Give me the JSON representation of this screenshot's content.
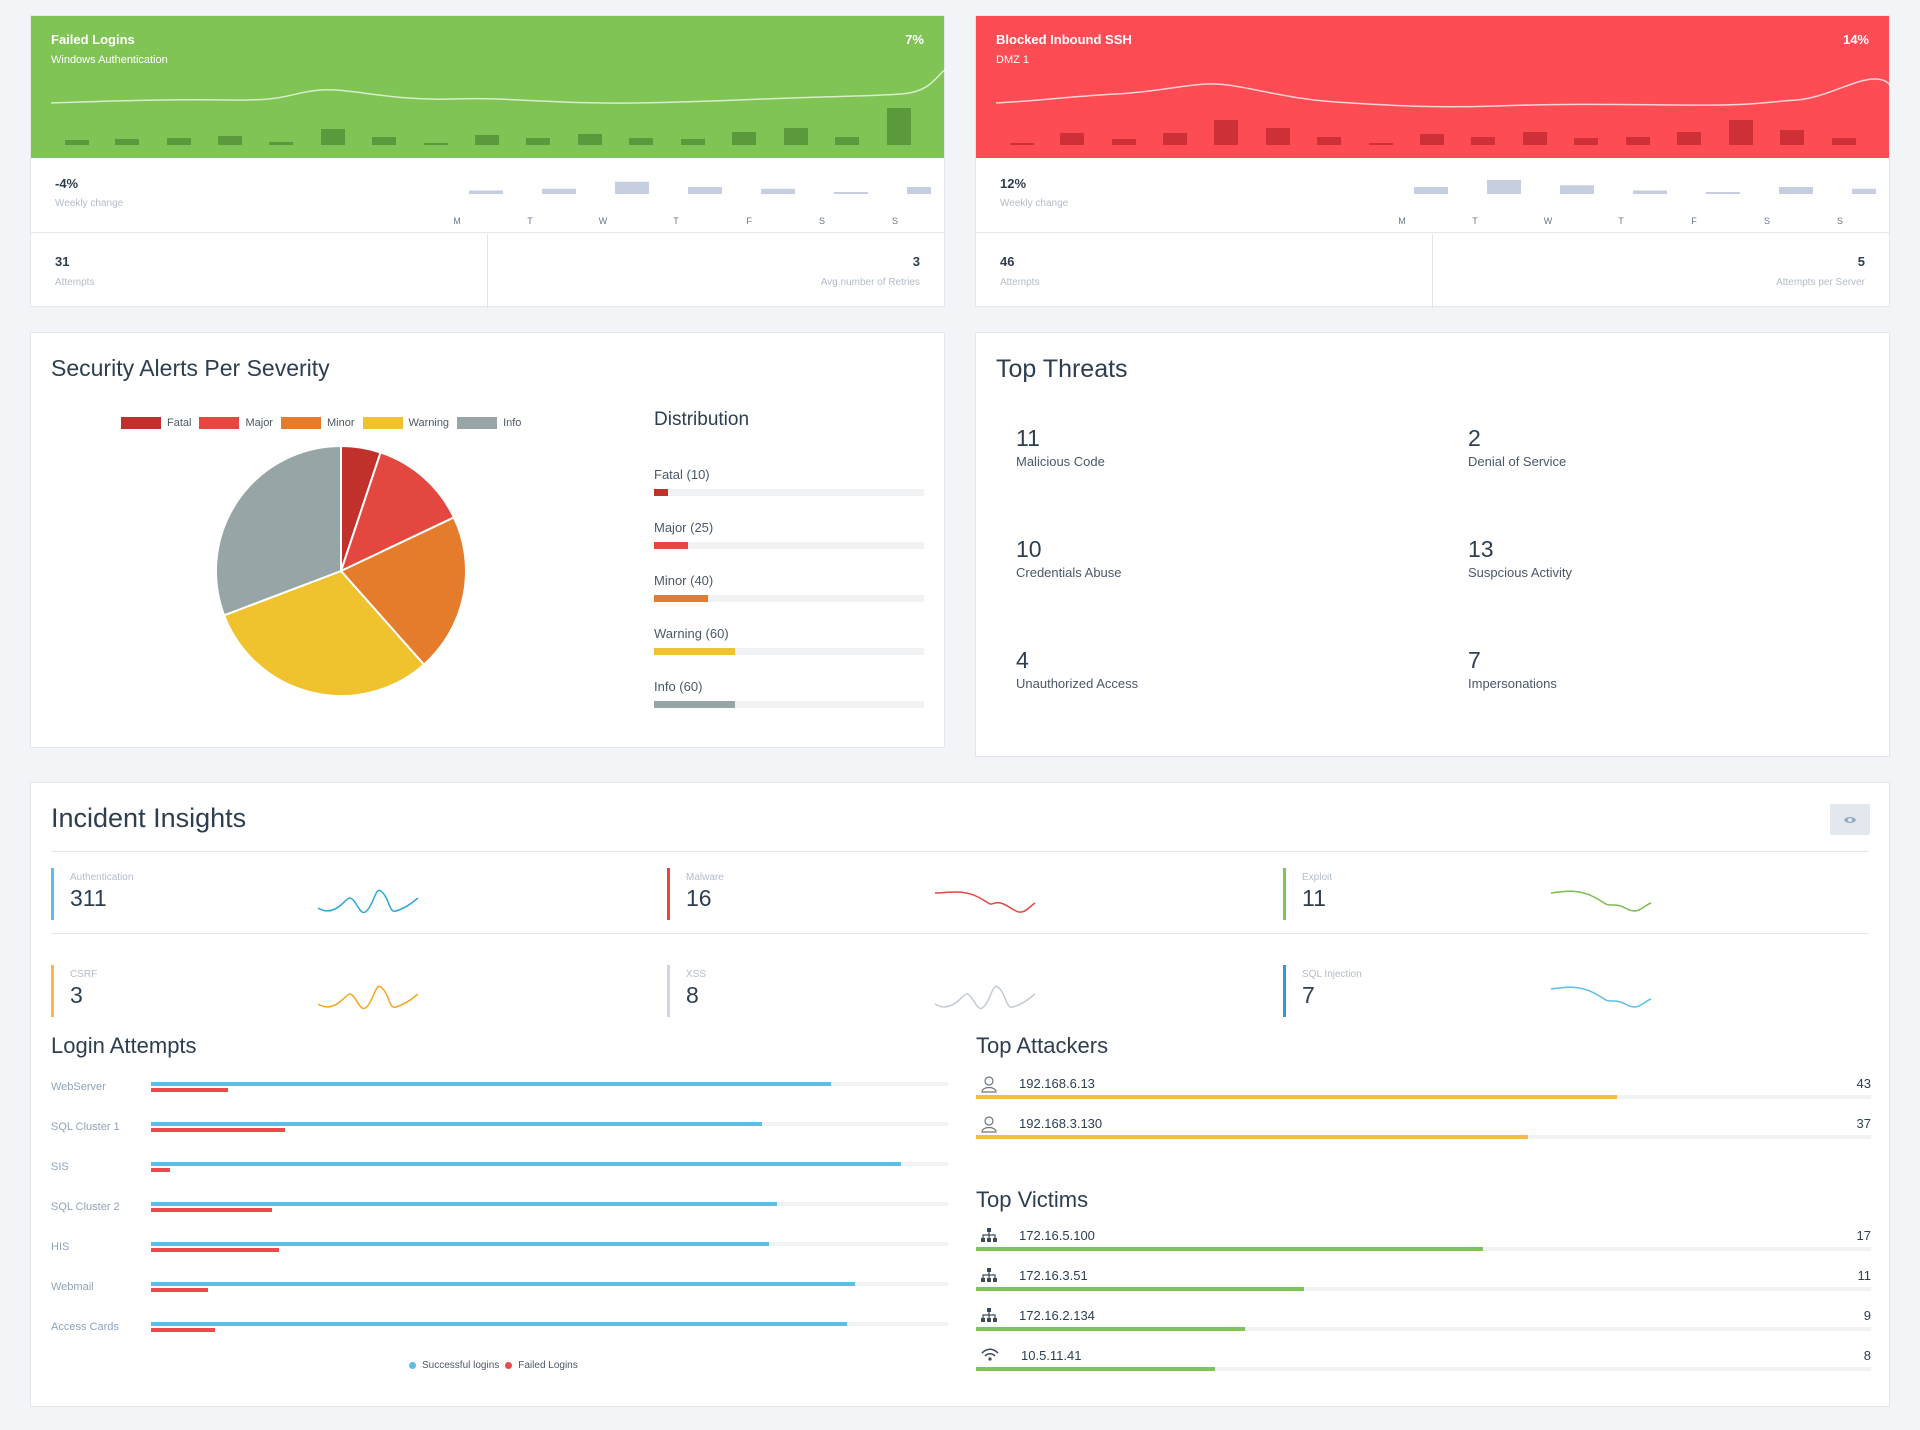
{
  "colors": {
    "green": "#80c456",
    "red": "#fe4c55",
    "fatal": "#c0312b",
    "major": "#e44740",
    "minor": "#e47c2c",
    "warning": "#f0c22e",
    "info": "#97a5a6",
    "blue": "#5cbde6",
    "orange": "#f5b944"
  },
  "kpi_left": {
    "title": "Failed Logins",
    "subtitle": "Windows Authentication",
    "percent": "7%",
    "weekly_value": "-4%",
    "weekly_label": "Weekly change",
    "days": [
      "M",
      "T",
      "W",
      "T",
      "F",
      "S",
      "S"
    ],
    "day_values": [
      2,
      3,
      7,
      4,
      3,
      1,
      4
    ],
    "attempts_value": "31",
    "attempts_label": "Attempts",
    "retries_value": "3",
    "retries_label": "Avg number of Retries"
  },
  "kpi_right": {
    "title": "Blocked Inbound SSH",
    "subtitle": "DMZ 1",
    "percent": "14%",
    "weekly_value": "12%",
    "weekly_label": "Weekly change",
    "days": [
      "M",
      "T",
      "W",
      "T",
      "F",
      "S",
      "S"
    ],
    "day_values": [
      4,
      8,
      5,
      2,
      1,
      4,
      3
    ],
    "attempts_value": "46",
    "attempts_label": "Attempts",
    "per_server_value": "5",
    "per_server_label": "Attempts per Server"
  },
  "severity": {
    "title": "Security Alerts Per Severity",
    "legend": [
      "Fatal",
      "Major",
      "Minor",
      "Warning",
      "Info"
    ],
    "values": [
      10,
      25,
      40,
      60,
      60
    ],
    "distribution_title": "Distribution",
    "distribution": [
      {
        "label": "Fatal (10)",
        "value": 10
      },
      {
        "label": "Major (25)",
        "value": 25
      },
      {
        "label": "Minor (40)",
        "value": 40
      },
      {
        "label": "Warning (60)",
        "value": 60
      },
      {
        "label": "Info (60)",
        "value": 60
      }
    ],
    "distribution_max": 200
  },
  "threats": {
    "title": "Top Threats",
    "items": [
      {
        "count": "11",
        "label": "Malicious Code"
      },
      {
        "count": "2",
        "label": "Denial of Service"
      },
      {
        "count": "10",
        "label": "Credentials Abuse"
      },
      {
        "count": "13",
        "label": "Suspcious Activity"
      },
      {
        "count": "4",
        "label": "Unauthorized Access"
      },
      {
        "count": "7",
        "label": "Impersonations"
      }
    ]
  },
  "incidents": {
    "title": "Incident Insights",
    "items": [
      {
        "category": "Authentication",
        "count": "311",
        "color": "#5cbde6"
      },
      {
        "category": "Malware",
        "count": "16",
        "color": "#e44740"
      },
      {
        "category": "Exploit",
        "count": "11",
        "color": "#80c456"
      },
      {
        "category": "CSRF",
        "count": "3",
        "color": "#f5b944"
      },
      {
        "category": "XSS",
        "count": "8",
        "color": "#d0d6de"
      },
      {
        "category": "SQL Injection",
        "count": "7",
        "color": "#2f9bd6"
      }
    ]
  },
  "login_attempts": {
    "title": "Login Attempts",
    "rows": [
      {
        "label": "WebServer",
        "success": 88,
        "failed": 12
      },
      {
        "label": "SQL Cluster 1",
        "success": 79,
        "failed": 21
      },
      {
        "label": "SIS",
        "success": 97,
        "failed": 3
      },
      {
        "label": "SQL Cluster 2",
        "success": 81,
        "failed": 19
      },
      {
        "label": "HIS",
        "success": 80,
        "failed": 20
      },
      {
        "label": "Webmail",
        "success": 91,
        "failed": 9
      },
      {
        "label": "Access Cards",
        "success": 90,
        "failed": 10
      }
    ],
    "legend_success": "Successful logins",
    "legend_failed": "Failed Logins"
  },
  "top_attackers": {
    "title": "Top Attackers",
    "max": 60,
    "rows": [
      {
        "ip": "192.168.6.13",
        "value": "43",
        "n": 43,
        "icon": "user-icon"
      },
      {
        "ip": "192.168.3.130",
        "value": "37",
        "n": 37,
        "icon": "user-icon"
      }
    ]
  },
  "top_victims": {
    "title": "Top Victims",
    "max": 30,
    "rows": [
      {
        "ip": "172.16.5.100",
        "value": "17",
        "n": 17,
        "icon": "network-icon"
      },
      {
        "ip": "172.16.3.51",
        "value": "11",
        "n": 11,
        "icon": "network-icon"
      },
      {
        "ip": "172.16.2.134",
        "value": "9",
        "n": 9,
        "icon": "network-icon"
      },
      {
        "ip": "10.5.11.41",
        "value": "8",
        "n": 8,
        "icon": "wifi-icon"
      }
    ]
  }
}
